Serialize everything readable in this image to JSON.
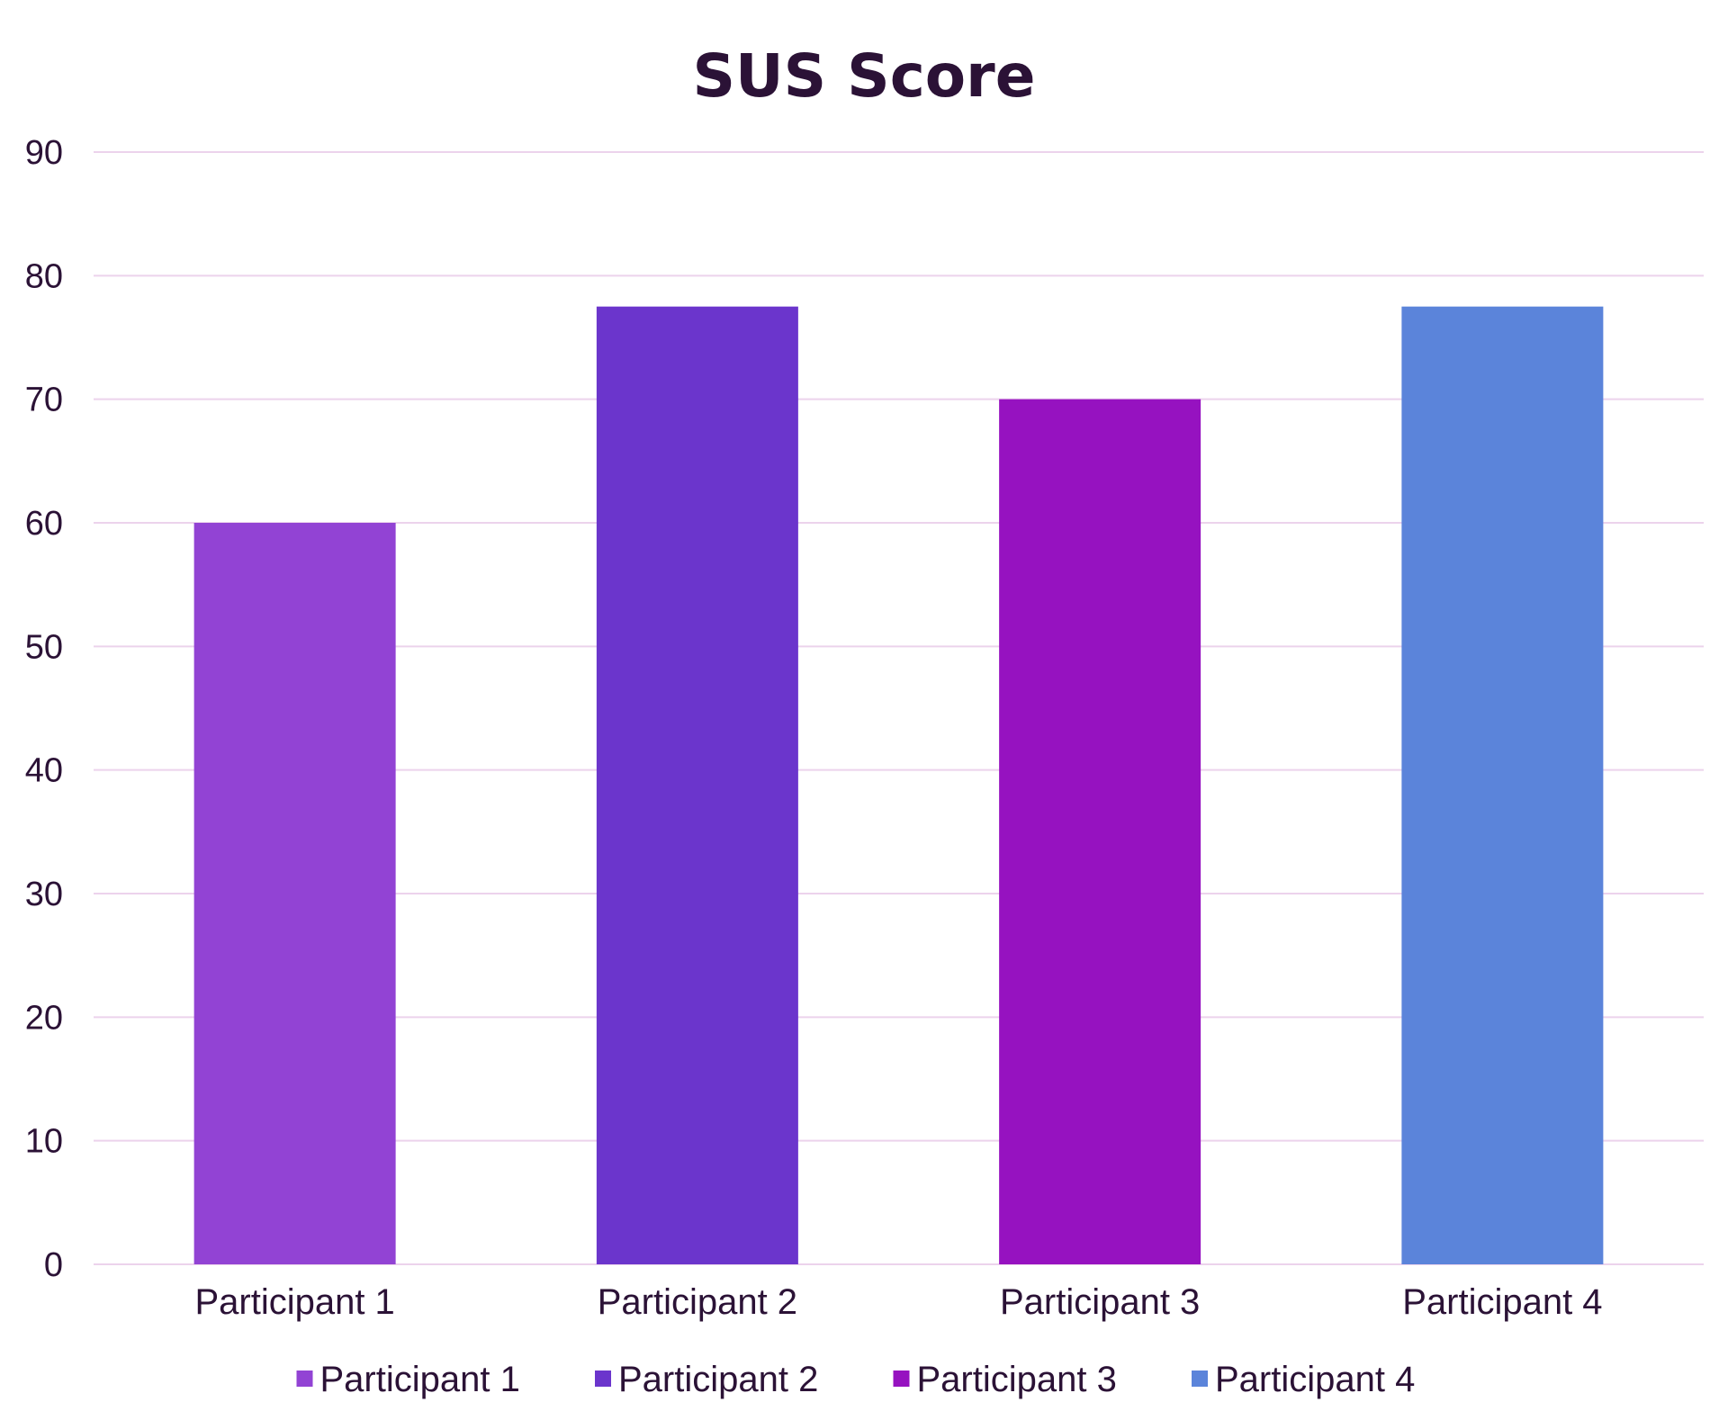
{
  "chart_data": {
    "type": "bar",
    "title": "SUS Score",
    "xlabel": "",
    "ylabel": "",
    "categories": [
      "Participant 1",
      "Participant 2",
      "Participant 3",
      "Participant 4"
    ],
    "values": [
      60,
      77.5,
      70,
      77.5
    ],
    "colors": [
      "#9243d4",
      "#6b35cc",
      "#9612c0",
      "#5b84da"
    ],
    "ylim": [
      0,
      90
    ],
    "yticks": [
      "0",
      "10",
      "20",
      "30",
      "40",
      "50",
      "60",
      "70",
      "80",
      "90"
    ],
    "gridlines": true,
    "grid_color": "#ecd3ec",
    "legend": {
      "position": "bottom",
      "entries": [
        "Participant 1",
        "Participant 2",
        "Participant 3",
        "Participant 4"
      ]
    }
  }
}
